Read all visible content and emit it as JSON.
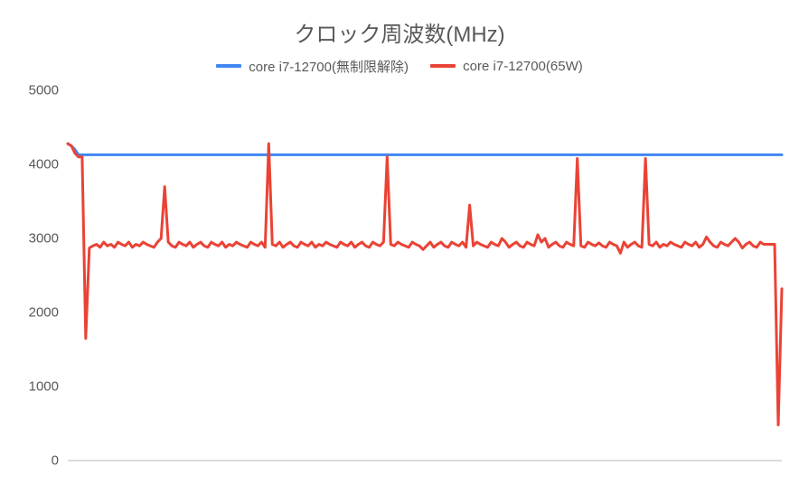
{
  "chart": {
    "type": "line",
    "title": "クロック周波数(MHz)",
    "title_fontsize": 24,
    "title_color": "#595959",
    "background_color": "#ffffff",
    "plot_background": "#ffffff",
    "axis_color": "#b7b7b7",
    "label_color": "#595959",
    "label_fontsize": 15,
    "ylim": [
      0,
      5000
    ],
    "ytick_step": 1000,
    "yticks": [
      0,
      1000,
      2000,
      3000,
      4000,
      5000
    ],
    "x_count": 200,
    "series": [
      {
        "name": "core i7-12700(無制限解除)",
        "color": "#4285f4",
        "line_width": 3,
        "data": [
          4280,
          4250,
          4200,
          4130,
          4130,
          4130,
          4130,
          4130,
          4130,
          4130,
          4130,
          4130,
          4130,
          4130,
          4130,
          4130,
          4130,
          4130,
          4130,
          4130,
          4130,
          4130,
          4130,
          4130,
          4130,
          4130,
          4130,
          4130,
          4130,
          4130,
          4130,
          4130,
          4130,
          4130,
          4130,
          4130,
          4130,
          4130,
          4130,
          4130,
          4130,
          4130,
          4130,
          4130,
          4130,
          4130,
          4130,
          4130,
          4130,
          4130,
          4130,
          4130,
          4130,
          4130,
          4130,
          4130,
          4130,
          4130,
          4130,
          4130,
          4130,
          4130,
          4130,
          4130,
          4130,
          4130,
          4130,
          4130,
          4130,
          4130,
          4130,
          4130,
          4130,
          4130,
          4130,
          4130,
          4130,
          4130,
          4130,
          4130,
          4130,
          4130,
          4130,
          4130,
          4130,
          4130,
          4130,
          4130,
          4130,
          4130,
          4130,
          4130,
          4130,
          4130,
          4130,
          4130,
          4130,
          4130,
          4130,
          4130,
          4130,
          4130,
          4130,
          4130,
          4130,
          4130,
          4130,
          4130,
          4130,
          4130,
          4130,
          4130,
          4130,
          4130,
          4130,
          4130,
          4130,
          4130,
          4130,
          4130,
          4130,
          4130,
          4130,
          4130,
          4130,
          4130,
          4130,
          4130,
          4130,
          4130,
          4130,
          4130,
          4130,
          4130,
          4130,
          4130,
          4130,
          4130,
          4130,
          4130,
          4130,
          4130,
          4130,
          4130,
          4130,
          4130,
          4130,
          4130,
          4130,
          4130,
          4130,
          4130,
          4130,
          4130,
          4130,
          4130,
          4130,
          4130,
          4130,
          4130,
          4130,
          4130,
          4130,
          4130,
          4130,
          4130,
          4130,
          4130,
          4130,
          4130,
          4130,
          4130,
          4130,
          4130,
          4130,
          4130,
          4130,
          4130,
          4130,
          4130,
          4130,
          4130,
          4130,
          4130,
          4130,
          4130,
          4130,
          4130,
          4130,
          4130,
          4130,
          4130,
          4130,
          4130,
          4130,
          4130,
          4130,
          4130,
          4130,
          4130
        ]
      },
      {
        "name": "core i7-12700(65W)",
        "color": "#ea4335",
        "line_width": 2.5,
        "data": [
          4280,
          4250,
          4150,
          4100,
          4100,
          1650,
          2870,
          2900,
          2920,
          2880,
          2950,
          2900,
          2920,
          2880,
          2950,
          2920,
          2900,
          2950,
          2880,
          2920,
          2900,
          2950,
          2920,
          2900,
          2880,
          2950,
          3000,
          3700,
          2950,
          2900,
          2880,
          2950,
          2920,
          2900,
          2950,
          2880,
          2920,
          2950,
          2900,
          2880,
          2950,
          2920,
          2900,
          2950,
          2880,
          2920,
          2900,
          2950,
          2920,
          2900,
          2880,
          2950,
          2920,
          2900,
          2950,
          2880,
          4280,
          2920,
          2900,
          2950,
          2880,
          2920,
          2950,
          2900,
          2880,
          2950,
          2920,
          2900,
          2950,
          2880,
          2920,
          2900,
          2950,
          2920,
          2900,
          2880,
          2950,
          2920,
          2900,
          2950,
          2880,
          2920,
          2950,
          2900,
          2880,
          2950,
          2920,
          2900,
          2950,
          4100,
          2920,
          2900,
          2950,
          2920,
          2900,
          2880,
          2950,
          2920,
          2900,
          2850,
          2900,
          2950,
          2880,
          2920,
          2950,
          2900,
          2880,
          2950,
          2920,
          2900,
          2950,
          2880,
          3450,
          2900,
          2950,
          2920,
          2900,
          2880,
          2950,
          2920,
          2900,
          3000,
          2950,
          2880,
          2920,
          2950,
          2900,
          2880,
          2950,
          2920,
          2900,
          3050,
          2950,
          3000,
          2880,
          2920,
          2950,
          2900,
          2880,
          2950,
          2920,
          2900,
          4080,
          2900,
          2880,
          2950,
          2920,
          2900,
          2940,
          2900,
          2880,
          2950,
          2920,
          2900,
          2800,
          2950,
          2880,
          2920,
          2950,
          2900,
          2880,
          4080,
          2920,
          2900,
          2950,
          2880,
          2920,
          2900,
          2950,
          2920,
          2900,
          2880,
          2950,
          2920,
          2900,
          2950,
          2880,
          2920,
          3020,
          2950,
          2900,
          2880,
          2950,
          2920,
          2900,
          2950,
          3000,
          2950,
          2870,
          2920,
          2950,
          2900,
          2880,
          2950,
          2920,
          2920,
          2920,
          2920,
          480,
          2320
        ]
      }
    ],
    "legend": {
      "position": "top",
      "fontsize": 15,
      "items": [
        {
          "label": "core i7-12700(無制限解除)",
          "color": "#4285f4"
        },
        {
          "label": "core i7-12700(65W)",
          "color": "#ea4335"
        }
      ]
    }
  }
}
